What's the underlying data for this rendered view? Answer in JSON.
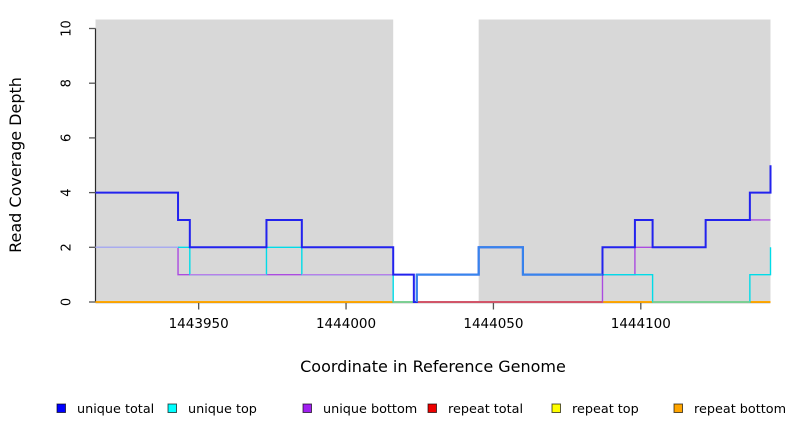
{
  "figure": {
    "background": "#ffffff",
    "plot_background": "#d8d8d8",
    "axis_color": "#2b2b2b",
    "tick_color": "#555555"
  },
  "chart_data": {
    "type": "line",
    "step_interpolation": true,
    "title": "",
    "xlabel": "Coordinate in Reference Genome",
    "ylabel": "Read Coverage Depth",
    "xlim": [
      1443915,
      1444144
    ],
    "ylim": [
      0,
      10
    ],
    "xticks": [
      1443950,
      1444000,
      1444050,
      1444100
    ],
    "yticks": [
      0,
      2,
      4,
      6,
      8,
      10
    ],
    "grid": false,
    "shaded_coverage_region": {
      "color": "#d8d8d8",
      "uncovered_gap": [
        1444016,
        1444045
      ]
    },
    "series": [
      {
        "name": "unique total",
        "color": "#2222ee",
        "width": 2,
        "steps": [
          [
            1443915,
            4
          ],
          [
            1443943,
            3
          ],
          [
            1443947,
            2
          ],
          [
            1443973,
            3
          ],
          [
            1443985,
            2
          ],
          [
            1444016,
            1
          ],
          [
            1444023,
            0
          ],
          [
            1444024,
            1
          ],
          [
            1444045,
            2
          ],
          [
            1444060,
            1
          ],
          [
            1444087,
            2
          ],
          [
            1444098,
            3
          ],
          [
            1444104,
            2
          ],
          [
            1444122,
            3
          ],
          [
            1444137,
            4
          ],
          [
            1444144,
            5
          ]
        ]
      },
      {
        "name": "unique top",
        "color": "#00dce8",
        "width": 1.4,
        "steps": [
          [
            1443915,
            2
          ],
          [
            1443947,
            1
          ],
          [
            1443973,
            2
          ],
          [
            1443985,
            1
          ],
          [
            1444016,
            0
          ],
          [
            1444024,
            1
          ],
          [
            1444045,
            2
          ],
          [
            1444060,
            1
          ],
          [
            1444104,
            0
          ],
          [
            1444137,
            1
          ],
          [
            1444144,
            2
          ]
        ]
      },
      {
        "name": "unique bottom",
        "color": "#ab4be0",
        "width": 1.4,
        "steps": [
          [
            1443915,
            2
          ],
          [
            1443943,
            1
          ],
          [
            1444023,
            0
          ],
          [
            1444087,
            1
          ],
          [
            1444098,
            2
          ],
          [
            1444122,
            3
          ],
          [
            1444144,
            3
          ]
        ]
      },
      {
        "name": "repeat total",
        "color": "#ee0000",
        "width": 1.4,
        "steps": [
          [
            1443915,
            0
          ],
          [
            1444144,
            0
          ]
        ]
      },
      {
        "name": "repeat top",
        "color": "#ffff00",
        "width": 1.4,
        "steps": [
          [
            1443915,
            0
          ],
          [
            1444144,
            0
          ]
        ]
      },
      {
        "name": "repeat bottom",
        "color": "#ffa500",
        "width": 1.8,
        "steps": [
          [
            1443915,
            0
          ],
          [
            1444144,
            0
          ]
        ]
      }
    ],
    "overlap_blends": {
      "flat_segments": [
        {
          "level": 2,
          "from": 1443915,
          "to": 1443943,
          "color": "#a9abef",
          "width": 1.5
        },
        {
          "level": 1,
          "from": 1443947,
          "to": 1443973,
          "color": "#b87fe8",
          "width": 1.4
        },
        {
          "level": 1,
          "from": 1443985,
          "to": 1444016,
          "color": "#b87fe8",
          "width": 1.4
        },
        {
          "level": 0,
          "from": 1444016,
          "to": 1444023,
          "color": "#7dd49c",
          "width": 1.6
        },
        {
          "level": 0,
          "from": 1444023,
          "to": 1444087,
          "color": "#d24a66",
          "width": 1.6
        },
        {
          "level": 0,
          "from": 1444104,
          "to": 1444137,
          "color": "#7dd49c",
          "width": 1.6
        }
      ],
      "bright_total_path": {
        "color": "#3585ec",
        "width": 2,
        "rise_from": 0,
        "steps": [
          [
            1444024,
            1
          ],
          [
            1444045,
            2
          ],
          [
            1444060,
            1
          ],
          [
            1444087,
            1
          ]
        ]
      }
    },
    "legend": {
      "position": "bottom",
      "items": [
        {
          "label": "unique total",
          "color": "#0000ff"
        },
        {
          "label": "unique top",
          "color": "#00ffff"
        },
        {
          "label": "unique bottom",
          "color": "#a020f0"
        },
        {
          "label": "repeat total",
          "color": "#ee0000"
        },
        {
          "label": "repeat top",
          "color": "#ffff00"
        },
        {
          "label": "repeat bottom",
          "color": "#ffa500"
        }
      ]
    }
  }
}
